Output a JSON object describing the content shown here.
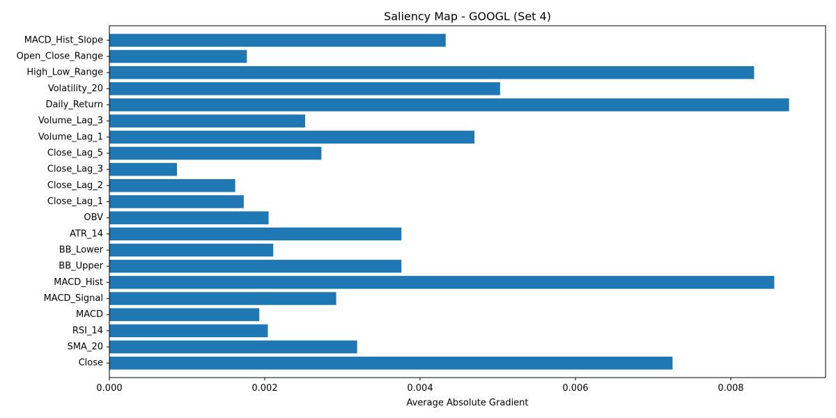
{
  "chart_data": {
    "type": "bar",
    "orientation": "horizontal",
    "title": "Saliency Map - GOOGL (Set 4)",
    "xlabel": "Average Absolute Gradient",
    "ylabel": "",
    "bar_color": "#1f77b4",
    "xlim": [
      0,
      0.00922
    ],
    "xticks": [
      0.0,
      0.002,
      0.004,
      0.006,
      0.008
    ],
    "xtick_labels": [
      "0.000",
      "0.002",
      "0.004",
      "0.006",
      "0.008"
    ],
    "grid": false,
    "categories": [
      "Close",
      "SMA_20",
      "RSI_14",
      "MACD",
      "MACD_Signal",
      "MACD_Hist",
      "BB_Upper",
      "BB_Lower",
      "ATR_14",
      "OBV",
      "Close_Lag_1",
      "Close_Lag_2",
      "Close_Lag_3",
      "Close_Lag_5",
      "Volume_Lag_1",
      "Volume_Lag_3",
      "Daily_Return",
      "Volatility_20",
      "High_Low_Range",
      "Open_Close_Range",
      "MACD_Hist_Slope"
    ],
    "values": [
      0.00725,
      0.00319,
      0.00204,
      0.00193,
      0.00292,
      0.00856,
      0.00376,
      0.00211,
      0.00376,
      0.00205,
      0.00173,
      0.00162,
      0.00087,
      0.00273,
      0.0047,
      0.00252,
      0.00875,
      0.00503,
      0.0083,
      0.00177,
      0.00433
    ]
  }
}
